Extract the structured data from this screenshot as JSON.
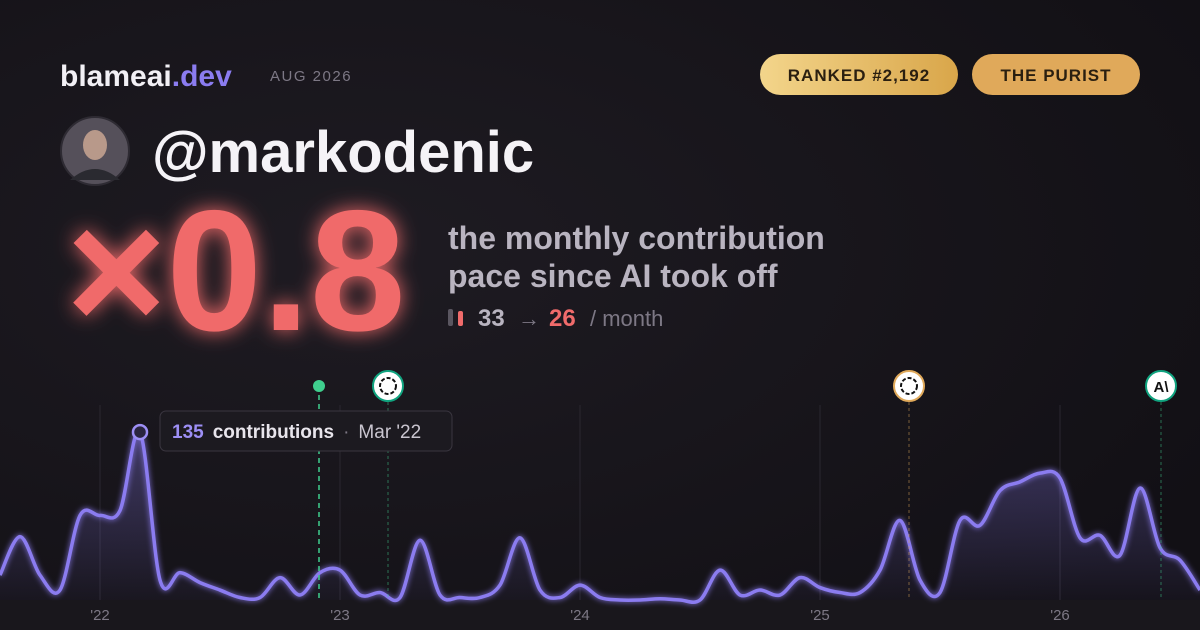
{
  "header": {
    "brand": "blameai",
    "brand_tld": ".dev",
    "period": "AUG 2026",
    "badges": [
      "RANKED #2,192",
      "THE PURIST"
    ]
  },
  "profile": {
    "handle": "@markodenic"
  },
  "headline": {
    "multiplier": "×0.8",
    "description": [
      "the monthly contribution",
      "pace since AI took off"
    ],
    "before": "33",
    "arrow": "→",
    "after": "26",
    "unit": "/ month"
  },
  "tooltip": {
    "label": "contributions",
    "separator": "·",
    "date": "Mar '22"
  },
  "events": [
    {
      "icon": "A\\"
    }
  ],
  "chart_data": {
    "type": "area",
    "color": "#8b7cf0",
    "ylim": [
      0,
      160
    ],
    "categories": [
      null,
      null,
      null,
      null,
      null,
      "'22",
      null,
      null,
      null,
      null,
      null,
      null,
      null,
      null,
      null,
      null,
      null,
      "'23",
      null,
      null,
      null,
      null,
      null,
      null,
      null,
      null,
      null,
      null,
      null,
      "'24",
      null,
      null,
      null,
      null,
      null,
      null,
      null,
      null,
      null,
      null,
      null,
      "'25",
      null,
      null,
      null,
      null,
      null,
      null,
      null,
      null,
      null,
      null,
      null,
      "'26",
      null,
      null,
      null,
      null,
      null,
      null,
      null
    ],
    "values": [
      20,
      51,
      20,
      8,
      68,
      68,
      72,
      135,
      16,
      22,
      14,
      8,
      2,
      2,
      18,
      4,
      22,
      24,
      4,
      6,
      2,
      48,
      4,
      2,
      2,
      12,
      50,
      8,
      2,
      12,
      2,
      0,
      0,
      1,
      0,
      0,
      24,
      4,
      8,
      4,
      18,
      10,
      6,
      6,
      24,
      64,
      16,
      6,
      64,
      60,
      88,
      95,
      102,
      98,
      50,
      52,
      36,
      90,
      42,
      32,
      8
    ]
  }
}
